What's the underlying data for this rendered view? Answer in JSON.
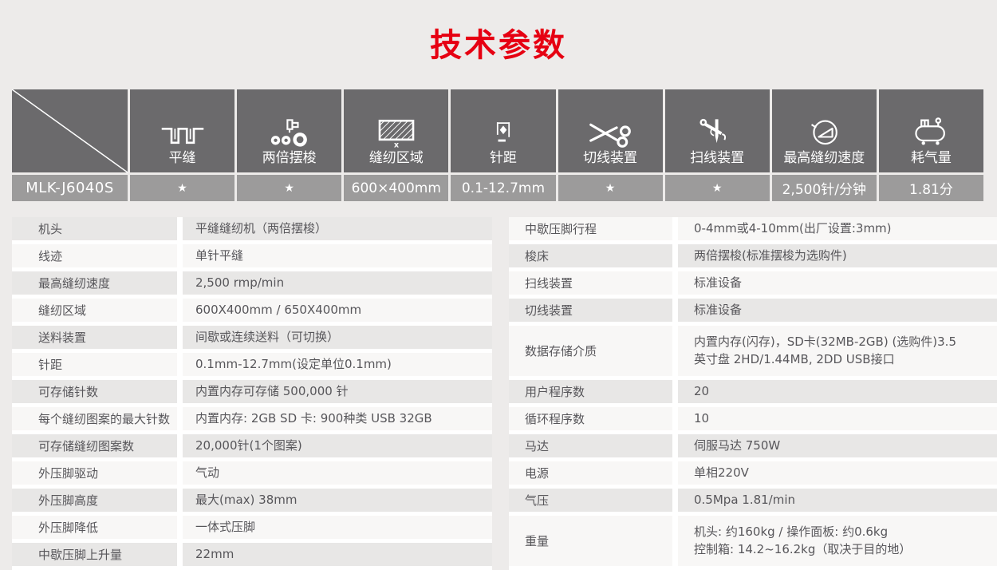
{
  "page": {
    "title": "技术参数"
  },
  "colors": {
    "background": "#edebea",
    "title_red": "#e60012",
    "header_cell": "#6b6a6c",
    "header_value_cell": "#9c9b9b",
    "row_shaded": "#e8e7e6",
    "row_light": "#f8f7f6",
    "text": "#57565a"
  },
  "header_table": {
    "model": "MLK-J6040S",
    "columns": [
      {
        "icon": "flat-seam-icon",
        "label": "平缝",
        "value": "★"
      },
      {
        "icon": "double-shuttle-icon",
        "label": "两倍摆梭",
        "value": "★"
      },
      {
        "icon": "sewing-area-icon",
        "label": "缝纫区域",
        "value": "600×400mm"
      },
      {
        "icon": "stitch-pitch-icon",
        "label": "针距",
        "value": "0.1-12.7mm"
      },
      {
        "icon": "thread-trimmer-icon",
        "label": "切线装置",
        "value": "★"
      },
      {
        "icon": "thread-wiper-icon",
        "label": "扫线装置",
        "value": "★"
      },
      {
        "icon": "max-speed-icon",
        "label": "最高缝纫速度",
        "value": "2,500针/分钟"
      },
      {
        "icon": "air-consumption-icon",
        "label": "耗气量",
        "value": "1.81分"
      }
    ]
  },
  "specs_left": [
    {
      "label": "机头",
      "value": "平缝缝纫机（两倍摆梭）"
    },
    {
      "label": "线迹",
      "value": "单针平缝"
    },
    {
      "label": "最高缝纫速度",
      "value": "2,500 rmp/min"
    },
    {
      "label": "缝纫区域",
      "value": "600X400mm / 650X400mm"
    },
    {
      "label": "送料装置",
      "value": "间歇或连续送料（可切换）"
    },
    {
      "label": "针距",
      "value": "0.1mm-12.7mm(设定单位0.1mm)"
    },
    {
      "label": "可存储针数",
      "value": "内置内存可存储 500,000 针"
    },
    {
      "label": "每个缝纫图案的最大针数",
      "value": "内置内存: 2GB SD 卡: 900种类 USB 32GB"
    },
    {
      "label": "可存储缝纫图案数",
      "value": "20,000针(1个图案)"
    },
    {
      "label": "外压脚驱动",
      "value": "气动"
    },
    {
      "label": "外压脚高度",
      "value": "最大(max) 38mm"
    },
    {
      "label": "外压脚降低",
      "value": "一体式压脚"
    },
    {
      "label": "中歇压脚上升量",
      "value": "22mm"
    }
  ],
  "specs_right": [
    {
      "label": "中歇压脚行程",
      "value": "0-4mm或4-10mm(出厂设置:3mm)"
    },
    {
      "label": "梭床",
      "value": "两倍摆梭(标准摆梭为选购件)"
    },
    {
      "label": "扫线装置",
      "value": "标准设备"
    },
    {
      "label": "切线装置",
      "value": "标准设备"
    },
    {
      "label": "数据存储介质",
      "value": "内置内存(闪存)，SD卡(32MB-2GB) (选购件)3.5\n英寸盘  2HD/1.44MB, 2DD  USB接口"
    },
    {
      "label": "用户程序数",
      "value": "20"
    },
    {
      "label": "循环程序数",
      "value": "10"
    },
    {
      "label": "马达",
      "value": "伺服马达 750W"
    },
    {
      "label": "电源",
      "value": "单相220V"
    },
    {
      "label": "气压",
      "value": "0.5Mpa 1.81/min"
    },
    {
      "label": "重量",
      "value": "机头: 约160kg  /  操作面板: 约0.6kg\n控制箱: 14.2~16.2kg（取决于目的地）"
    }
  ]
}
